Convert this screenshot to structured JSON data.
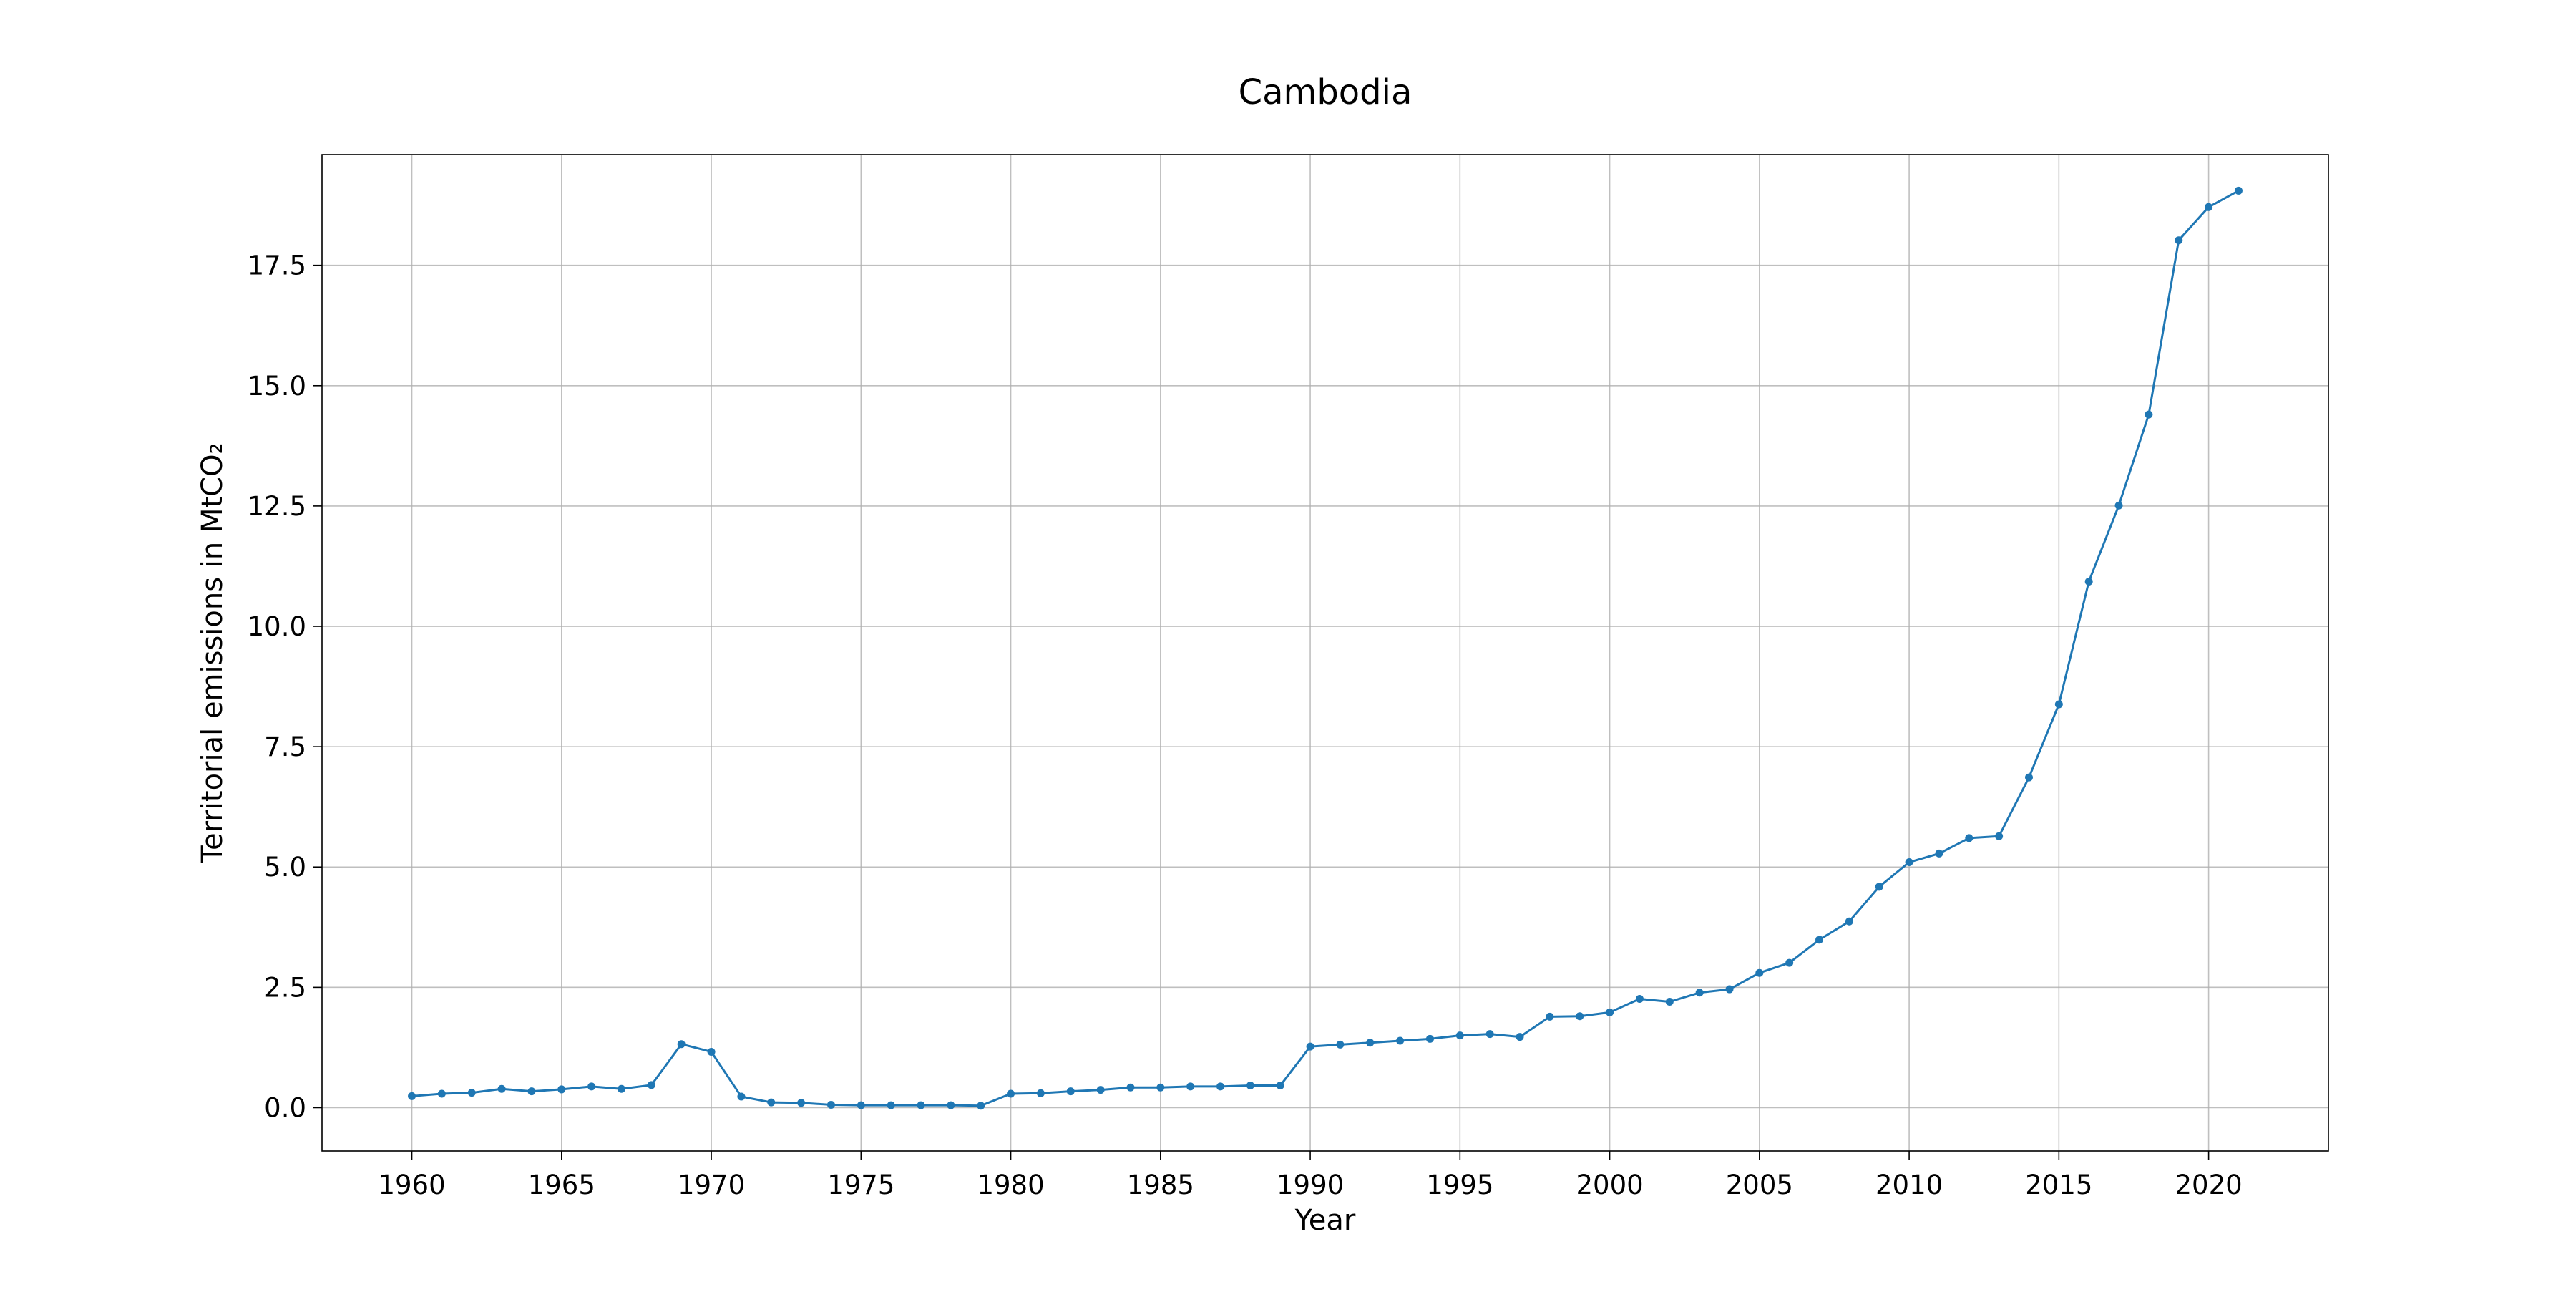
{
  "chart_data": {
    "type": "line",
    "title": "Cambodia",
    "xlabel": "Year",
    "ylabel": "Territorial emissions in MtCO₂",
    "xlim": [
      1957,
      2024
    ],
    "ylim": [
      -0.9,
      19.8
    ],
    "x_ticks": [
      1960,
      1965,
      1970,
      1975,
      1980,
      1985,
      1990,
      1995,
      2000,
      2005,
      2010,
      2015,
      2020
    ],
    "x_tick_labels": [
      "1960",
      "1965",
      "1970",
      "1975",
      "1980",
      "1985",
      "1990",
      "1995",
      "2000",
      "2005",
      "2010",
      "2015",
      "2020"
    ],
    "y_ticks": [
      0,
      2.5,
      5,
      7.5,
      10,
      12.5,
      15,
      17.5
    ],
    "y_tick_labels": [
      "0.0",
      "2.5",
      "5.0",
      "7.5",
      "10.0",
      "12.5",
      "15.0",
      "17.5"
    ],
    "grid": true,
    "marker": "dot",
    "color": "#1f77b4",
    "series": [
      {
        "x": [
          1960,
          1961,
          1962,
          1963,
          1964,
          1965,
          1966,
          1967,
          1968,
          1969,
          1970,
          1971,
          1972,
          1973,
          1974,
          1975,
          1976,
          1977,
          1978,
          1979,
          1980,
          1981,
          1982,
          1983,
          1984,
          1985,
          1986,
          1987,
          1988,
          1989,
          1990,
          1991,
          1992,
          1993,
          1994,
          1995,
          1996,
          1997,
          1998,
          1999,
          2000,
          2001,
          2002,
          2003,
          2004,
          2005,
          2006,
          2007,
          2008,
          2009,
          2010,
          2011,
          2012,
          2013,
          2014,
          2015,
          2016,
          2017,
          2018,
          2019,
          2020,
          2021
        ],
        "y": [
          0.24,
          0.29,
          0.31,
          0.39,
          0.34,
          0.38,
          0.44,
          0.39,
          0.47,
          1.32,
          1.16,
          0.23,
          0.11,
          0.1,
          0.06,
          0.05,
          0.05,
          0.05,
          0.05,
          0.04,
          0.29,
          0.3,
          0.34,
          0.37,
          0.42,
          0.42,
          0.44,
          0.44,
          0.46,
          0.46,
          1.27,
          1.31,
          1.35,
          1.39,
          1.43,
          1.5,
          1.53,
          1.47,
          1.89,
          1.9,
          1.98,
          2.26,
          2.2,
          2.39,
          2.46,
          2.8,
          3.01,
          3.49,
          3.87,
          4.59,
          5.1,
          5.28,
          5.6,
          5.64,
          6.86,
          8.38,
          10.93,
          12.51,
          14.4,
          18.02,
          18.71,
          19.05
        ]
      }
    ]
  }
}
